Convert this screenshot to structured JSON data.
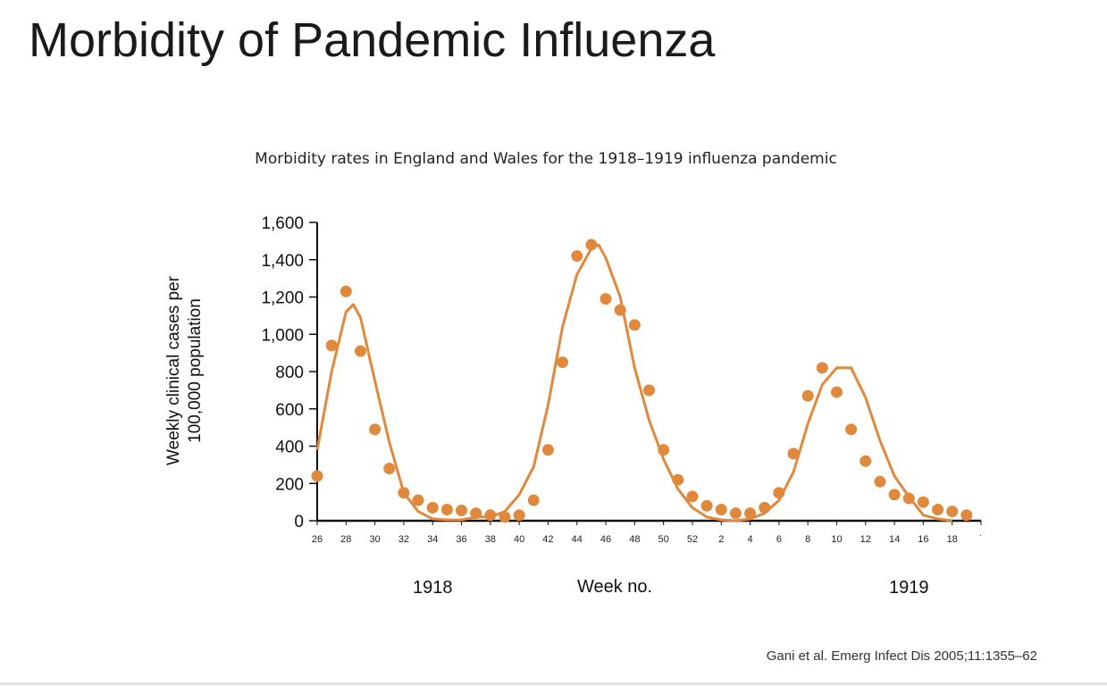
{
  "slide": {
    "title": "Morbidity of Pandemic Influenza",
    "citation": "Gani et al. Emerg Infect Dis 2005;11:1355–62"
  },
  "chart_data": {
    "type": "scatter",
    "title": "Morbidity rates in England and Wales for the 1918–1919 influenza pandemic",
    "xlabel": "Week no.",
    "ylabel": "Weekly clinical cases per 100,000 population",
    "ylim": [
      0,
      1600
    ],
    "y_ticks": [
      0,
      200,
      400,
      600,
      800,
      1000,
      1200,
      1400,
      1600
    ],
    "y_tick_labels": [
      "0",
      "200",
      "400",
      "600",
      "800",
      "1,000",
      "1,200",
      "1,400",
      "1,600"
    ],
    "x_tick_labels": [
      "26",
      "28",
      "30",
      "32",
      "34",
      "36",
      "38",
      "40",
      "42",
      "44",
      "46",
      "48",
      "50",
      "52",
      "2",
      "4",
      "6",
      "8",
      "10",
      "12",
      "14",
      "16",
      "18",
      "˙"
    ],
    "year_labels": [
      {
        "text": "1918",
        "week_index": 8
      },
      {
        "text": "1919",
        "week_index": 41
      }
    ],
    "color": "#e0893c",
    "grid": false,
    "legend": "none",
    "series": [
      {
        "type": "scatter",
        "x": [
          26,
          27,
          28,
          29,
          30,
          31,
          32,
          33,
          34,
          35,
          36,
          37,
          38,
          39,
          40,
          41,
          42,
          43,
          44,
          45,
          46,
          47,
          48,
          49,
          50,
          51,
          52,
          53,
          54,
          55,
          56,
          57,
          58,
          59,
          60,
          61,
          62,
          63,
          64,
          65,
          66,
          67,
          68,
          69,
          70,
          71
        ],
        "y": [
          240,
          940,
          1230,
          910,
          490,
          280,
          150,
          110,
          70,
          60,
          55,
          40,
          30,
          20,
          30,
          110,
          380,
          850,
          1420,
          1480,
          1190,
          1130,
          1050,
          700,
          380,
          220,
          130,
          80,
          60,
          40,
          40,
          70,
          150,
          360,
          670,
          820,
          690,
          490,
          320,
          210,
          140,
          120,
          100,
          60,
          50,
          30
        ]
      },
      {
        "type": "line",
        "x": [
          26,
          27,
          28,
          28.5,
          29,
          30,
          31,
          32,
          33,
          34,
          35,
          36,
          37,
          38,
          39,
          40,
          41,
          42,
          43,
          44,
          45,
          45.5,
          46,
          47,
          48,
          49,
          50,
          51,
          52,
          53,
          54,
          55,
          56,
          57,
          58,
          59,
          60,
          61,
          62,
          63,
          64,
          65,
          66,
          67,
          68,
          69,
          70
        ],
        "y": [
          380,
          800,
          1120,
          1160,
          1090,
          750,
          420,
          150,
          50,
          10,
          5,
          5,
          20,
          20,
          50,
          140,
          290,
          620,
          1040,
          1320,
          1460,
          1480,
          1410,
          1200,
          820,
          540,
          330,
          170,
          70,
          20,
          5,
          0,
          10,
          40,
          110,
          260,
          520,
          730,
          820,
          820,
          660,
          430,
          240,
          130,
          30,
          10,
          0
        ]
      }
    ]
  }
}
